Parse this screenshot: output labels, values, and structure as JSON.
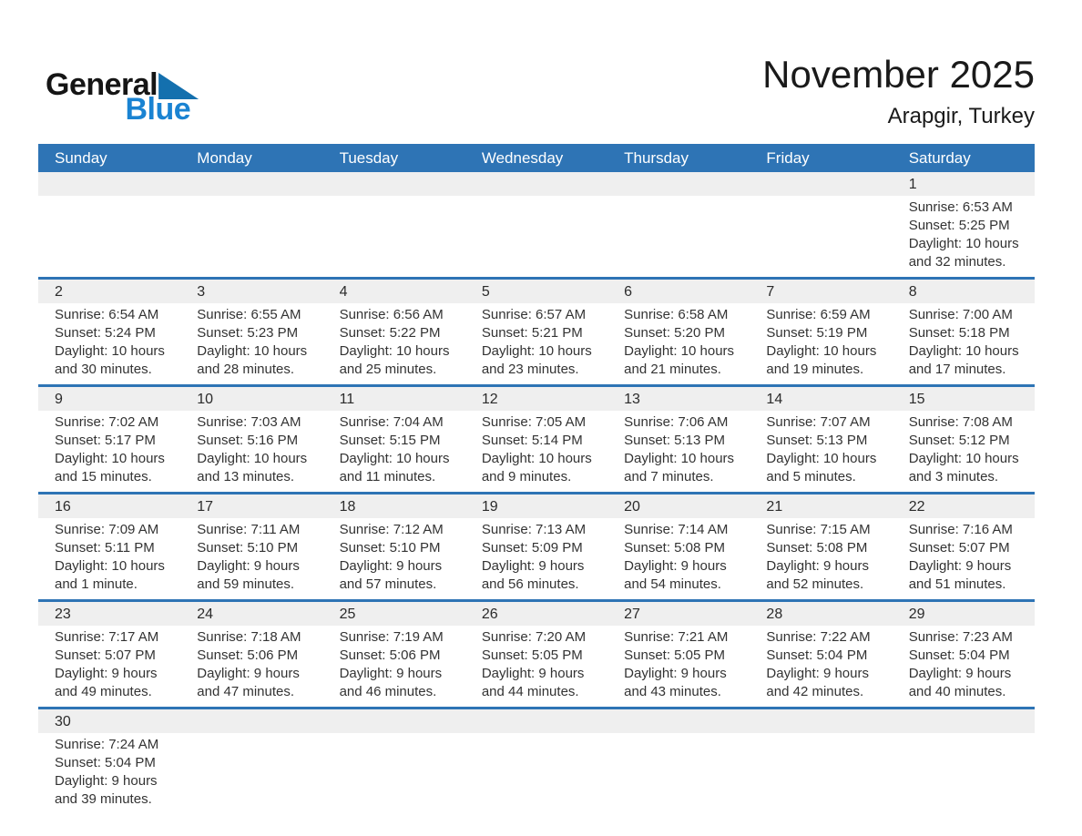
{
  "logo": {
    "part1": "General",
    "part2": "Blue",
    "triangle_icon": "blue-lower-left-triangle"
  },
  "header": {
    "title": "November 2025",
    "subtitle": "Arapgir, Turkey"
  },
  "colors": {
    "header_bg": "#2E74B5",
    "row_divider": "#2E74B5",
    "day_band_bg": "#EFEFEF",
    "logo_text_blue": "#1A83D2",
    "logo_triangle_blue": "#1470AE",
    "body_text": "#333333"
  },
  "weekday_headers": [
    "Sunday",
    "Monday",
    "Tuesday",
    "Wednesday",
    "Thursday",
    "Friday",
    "Saturday"
  ],
  "weeks": [
    [
      {
        "day": "",
        "lines": []
      },
      {
        "day": "",
        "lines": []
      },
      {
        "day": "",
        "lines": []
      },
      {
        "day": "",
        "lines": []
      },
      {
        "day": "",
        "lines": []
      },
      {
        "day": "",
        "lines": []
      },
      {
        "day": "1",
        "lines": [
          "Sunrise: 6:53 AM",
          "Sunset: 5:25 PM",
          "Daylight: 10 hours",
          "and 32 minutes."
        ]
      }
    ],
    [
      {
        "day": "2",
        "lines": [
          "Sunrise: 6:54 AM",
          "Sunset: 5:24 PM",
          "Daylight: 10 hours",
          "and 30 minutes."
        ]
      },
      {
        "day": "3",
        "lines": [
          "Sunrise: 6:55 AM",
          "Sunset: 5:23 PM",
          "Daylight: 10 hours",
          "and 28 minutes."
        ]
      },
      {
        "day": "4",
        "lines": [
          "Sunrise: 6:56 AM",
          "Sunset: 5:22 PM",
          "Daylight: 10 hours",
          "and 25 minutes."
        ]
      },
      {
        "day": "5",
        "lines": [
          "Sunrise: 6:57 AM",
          "Sunset: 5:21 PM",
          "Daylight: 10 hours",
          "and 23 minutes."
        ]
      },
      {
        "day": "6",
        "lines": [
          "Sunrise: 6:58 AM",
          "Sunset: 5:20 PM",
          "Daylight: 10 hours",
          "and 21 minutes."
        ]
      },
      {
        "day": "7",
        "lines": [
          "Sunrise: 6:59 AM",
          "Sunset: 5:19 PM",
          "Daylight: 10 hours",
          "and 19 minutes."
        ]
      },
      {
        "day": "8",
        "lines": [
          "Sunrise: 7:00 AM",
          "Sunset: 5:18 PM",
          "Daylight: 10 hours",
          "and 17 minutes."
        ]
      }
    ],
    [
      {
        "day": "9",
        "lines": [
          "Sunrise: 7:02 AM",
          "Sunset: 5:17 PM",
          "Daylight: 10 hours",
          "and 15 minutes."
        ]
      },
      {
        "day": "10",
        "lines": [
          "Sunrise: 7:03 AM",
          "Sunset: 5:16 PM",
          "Daylight: 10 hours",
          "and 13 minutes."
        ]
      },
      {
        "day": "11",
        "lines": [
          "Sunrise: 7:04 AM",
          "Sunset: 5:15 PM",
          "Daylight: 10 hours",
          "and 11 minutes."
        ]
      },
      {
        "day": "12",
        "lines": [
          "Sunrise: 7:05 AM",
          "Sunset: 5:14 PM",
          "Daylight: 10 hours",
          "and 9 minutes."
        ]
      },
      {
        "day": "13",
        "lines": [
          "Sunrise: 7:06 AM",
          "Sunset: 5:13 PM",
          "Daylight: 10 hours",
          "and 7 minutes."
        ]
      },
      {
        "day": "14",
        "lines": [
          "Sunrise: 7:07 AM",
          "Sunset: 5:13 PM",
          "Daylight: 10 hours",
          "and 5 minutes."
        ]
      },
      {
        "day": "15",
        "lines": [
          "Sunrise: 7:08 AM",
          "Sunset: 5:12 PM",
          "Daylight: 10 hours",
          "and 3 minutes."
        ]
      }
    ],
    [
      {
        "day": "16",
        "lines": [
          "Sunrise: 7:09 AM",
          "Sunset: 5:11 PM",
          "Daylight: 10 hours",
          "and 1 minute."
        ]
      },
      {
        "day": "17",
        "lines": [
          "Sunrise: 7:11 AM",
          "Sunset: 5:10 PM",
          "Daylight: 9 hours",
          "and 59 minutes."
        ]
      },
      {
        "day": "18",
        "lines": [
          "Sunrise: 7:12 AM",
          "Sunset: 5:10 PM",
          "Daylight: 9 hours",
          "and 57 minutes."
        ]
      },
      {
        "day": "19",
        "lines": [
          "Sunrise: 7:13 AM",
          "Sunset: 5:09 PM",
          "Daylight: 9 hours",
          "and 56 minutes."
        ]
      },
      {
        "day": "20",
        "lines": [
          "Sunrise: 7:14 AM",
          "Sunset: 5:08 PM",
          "Daylight: 9 hours",
          "and 54 minutes."
        ]
      },
      {
        "day": "21",
        "lines": [
          "Sunrise: 7:15 AM",
          "Sunset: 5:08 PM",
          "Daylight: 9 hours",
          "and 52 minutes."
        ]
      },
      {
        "day": "22",
        "lines": [
          "Sunrise: 7:16 AM",
          "Sunset: 5:07 PM",
          "Daylight: 9 hours",
          "and 51 minutes."
        ]
      }
    ],
    [
      {
        "day": "23",
        "lines": [
          "Sunrise: 7:17 AM",
          "Sunset: 5:07 PM",
          "Daylight: 9 hours",
          "and 49 minutes."
        ]
      },
      {
        "day": "24",
        "lines": [
          "Sunrise: 7:18 AM",
          "Sunset: 5:06 PM",
          "Daylight: 9 hours",
          "and 47 minutes."
        ]
      },
      {
        "day": "25",
        "lines": [
          "Sunrise: 7:19 AM",
          "Sunset: 5:06 PM",
          "Daylight: 9 hours",
          "and 46 minutes."
        ]
      },
      {
        "day": "26",
        "lines": [
          "Sunrise: 7:20 AM",
          "Sunset: 5:05 PM",
          "Daylight: 9 hours",
          "and 44 minutes."
        ]
      },
      {
        "day": "27",
        "lines": [
          "Sunrise: 7:21 AM",
          "Sunset: 5:05 PM",
          "Daylight: 9 hours",
          "and 43 minutes."
        ]
      },
      {
        "day": "28",
        "lines": [
          "Sunrise: 7:22 AM",
          "Sunset: 5:04 PM",
          "Daylight: 9 hours",
          "and 42 minutes."
        ]
      },
      {
        "day": "29",
        "lines": [
          "Sunrise: 7:23 AM",
          "Sunset: 5:04 PM",
          "Daylight: 9 hours",
          "and 40 minutes."
        ]
      }
    ],
    [
      {
        "day": "30",
        "lines": [
          "Sunrise: 7:24 AM",
          "Sunset: 5:04 PM",
          "Daylight: 9 hours",
          "and 39 minutes."
        ]
      },
      {
        "day": "",
        "lines": []
      },
      {
        "day": "",
        "lines": []
      },
      {
        "day": "",
        "lines": []
      },
      {
        "day": "",
        "lines": []
      },
      {
        "day": "",
        "lines": []
      },
      {
        "day": "",
        "lines": []
      }
    ]
  ]
}
